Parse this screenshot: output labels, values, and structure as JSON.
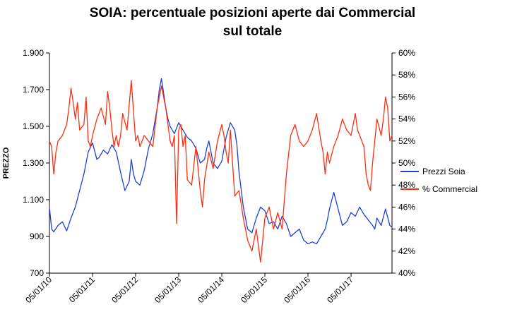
{
  "chart_data": {
    "type": "line",
    "title_line1": "SOIA: percentuale posizioni aperte dai Commercial",
    "title_line2": "sul totale",
    "ylabel_left": "PREZZO",
    "ylabel_right": "",
    "xlabel": "",
    "left_ylim": [
      700,
      1900
    ],
    "right_ylim": [
      40,
      60
    ],
    "left_ticks": [
      "1.900",
      "1.700",
      "1.500",
      "1.300",
      "1.100",
      "900",
      "700"
    ],
    "left_tick_values": [
      1900,
      1700,
      1500,
      1300,
      1100,
      900,
      700
    ],
    "right_ticks": [
      "60%",
      "58%",
      "56%",
      "54%",
      "52%",
      "50%",
      "48%",
      "46%",
      "44%",
      "42%",
      "40%"
    ],
    "right_tick_values": [
      60,
      58,
      56,
      54,
      52,
      50,
      48,
      46,
      44,
      42,
      40
    ],
    "x_ticks": [
      "05/01/10",
      "05/01/11",
      "05/01/12",
      "05/01/13",
      "05/01/14",
      "05/01/15",
      "05/01/16",
      "05/01/17"
    ],
    "x_tick_values": [
      2010.0,
      2011.0,
      2012.0,
      2013.0,
      2014.0,
      2015.0,
      2016.0,
      2017.0
    ],
    "xlim": [
      2010.0,
      2017.95
    ],
    "grid": "none",
    "legend_position": "right",
    "series": [
      {
        "name": "Prezzi Soia",
        "axis": "left",
        "color": "#1f3fd6",
        "x": [
          2010.0,
          2010.05,
          2010.1,
          2010.2,
          2010.3,
          2010.4,
          2010.5,
          2010.6,
          2010.7,
          2010.8,
          2010.9,
          2011.0,
          2011.1,
          2011.15,
          2011.25,
          2011.35,
          2011.45,
          2011.55,
          2011.65,
          2011.75,
          2011.85,
          2011.9,
          2011.95,
          2012.0,
          2012.1,
          2012.2,
          2012.3,
          2012.4,
          2012.5,
          2012.55,
          2012.6,
          2012.65,
          2012.7,
          2012.75,
          2012.8,
          2012.85,
          2012.9,
          2013.0,
          2013.1,
          2013.2,
          2013.3,
          2013.4,
          2013.5,
          2013.6,
          2013.65,
          2013.7,
          2013.8,
          2013.9,
          2014.0,
          2014.1,
          2014.2,
          2014.3,
          2014.35,
          2014.4,
          2014.5,
          2014.55,
          2014.6,
          2014.7,
          2014.8,
          2014.9,
          2015.0,
          2015.1,
          2015.2,
          2015.3,
          2015.4,
          2015.5,
          2015.6,
          2015.7,
          2015.8,
          2015.9,
          2016.0,
          2016.1,
          2016.2,
          2016.3,
          2016.4,
          2016.45,
          2016.5,
          2016.6,
          2016.7,
          2016.8,
          2016.9,
          2017.0,
          2017.1,
          2017.2,
          2017.3,
          2017.4,
          2017.5,
          2017.55,
          2017.6,
          2017.7,
          2017.8,
          2017.9,
          2017.95
        ],
        "values": [
          1060,
          940,
          925,
          960,
          980,
          930,
          1000,
          1060,
          1150,
          1240,
          1360,
          1410,
          1320,
          1330,
          1370,
          1350,
          1400,
          1360,
          1250,
          1150,
          1200,
          1320,
          1240,
          1200,
          1180,
          1260,
          1380,
          1460,
          1600,
          1700,
          1760,
          1680,
          1600,
          1540,
          1500,
          1480,
          1460,
          1520,
          1480,
          1440,
          1420,
          1380,
          1300,
          1320,
          1380,
          1420,
          1300,
          1270,
          1310,
          1440,
          1520,
          1480,
          1400,
          1250,
          1060,
          1000,
          940,
          920,
          1000,
          1060,
          1040,
          970,
          980,
          940,
          1010,
          970,
          900,
          920,
          940,
          880,
          860,
          870,
          860,
          900,
          940,
          990,
          1050,
          1140,
          1050,
          960,
          980,
          1030,
          1010,
          1060,
          1020,
          990,
          960,
          940,
          1000,
          960,
          1050,
          960,
          950
        ]
      },
      {
        "name": "% Commercial",
        "axis": "right",
        "color": "#ff2d0f",
        "x": [
          2010.0,
          2010.05,
          2010.1,
          2010.15,
          2010.2,
          2010.3,
          2010.4,
          2010.45,
          2010.5,
          2010.55,
          2010.6,
          2010.65,
          2010.7,
          2010.8,
          2010.85,
          2010.9,
          2010.95,
          2011.0,
          2011.1,
          2011.2,
          2011.3,
          2011.35,
          2011.4,
          2011.45,
          2011.5,
          2011.55,
          2011.6,
          2011.65,
          2011.7,
          2011.8,
          2011.9,
          2012.0,
          2012.05,
          2012.1,
          2012.2,
          2012.3,
          2012.4,
          2012.5,
          2012.6,
          2012.7,
          2012.75,
          2012.8,
          2012.85,
          2012.9,
          2012.95,
          2013.0,
          2013.05,
          2013.1,
          2013.15,
          2013.2,
          2013.3,
          2013.4,
          2013.5,
          2013.55,
          2013.6,
          2013.7,
          2013.8,
          2013.9,
          2014.0,
          2014.05,
          2014.1,
          2014.15,
          2014.2,
          2014.3,
          2014.4,
          2014.5,
          2014.6,
          2014.7,
          2014.8,
          2014.9,
          2015.0,
          2015.1,
          2015.2,
          2015.3,
          2015.4,
          2015.5,
          2015.6,
          2015.7,
          2015.8,
          2015.9,
          2016.0,
          2016.1,
          2016.2,
          2016.3,
          2016.35,
          2016.4,
          2016.45,
          2016.5,
          2016.6,
          2016.7,
          2016.8,
          2016.9,
          2017.0,
          2017.1,
          2017.15,
          2017.2,
          2017.3,
          2017.35,
          2017.4,
          2017.45,
          2017.5,
          2017.55,
          2017.6,
          2017.7,
          2017.75,
          2017.8,
          2017.85,
          2017.9,
          2017.95
        ],
        "values": [
          52.0,
          51.5,
          49.0,
          51.0,
          52.0,
          52.5,
          53.5,
          55.0,
          56.8,
          55.5,
          54.0,
          55.5,
          53.0,
          53.5,
          56.0,
          52.0,
          51.5,
          52.5,
          54.0,
          55.0,
          53.5,
          56.5,
          55.0,
          53.0,
          51.5,
          52.5,
          51.5,
          52.5,
          54.5,
          53.0,
          57.5,
          52.0,
          52.5,
          51.5,
          52.5,
          52.0,
          51.5,
          55.0,
          57.0,
          55.0,
          53.5,
          52.0,
          51.5,
          52.5,
          44.5,
          53.0,
          53.5,
          51.5,
          52.5,
          48.5,
          48.0,
          51.5,
          47.5,
          46.0,
          48.5,
          51.0,
          49.5,
          52.0,
          53.5,
          52.5,
          51.0,
          50.0,
          53.0,
          47.0,
          47.5,
          45.0,
          43.0,
          42.0,
          44.0,
          41.0,
          45.0,
          46.0,
          44.0,
          45.5,
          44.0,
          49.0,
          52.5,
          53.5,
          52.0,
          51.5,
          52.0,
          53.0,
          54.5,
          52.0,
          51.0,
          49.0,
          51.0,
          50.0,
          51.5,
          52.5,
          54.0,
          53.0,
          52.5,
          54.5,
          53.0,
          52.5,
          51.5,
          49.0,
          48.0,
          47.5,
          50.0,
          52.0,
          54.0,
          52.5,
          54.0,
          56.0,
          55.0,
          52.0,
          52.5
        ]
      }
    ]
  }
}
